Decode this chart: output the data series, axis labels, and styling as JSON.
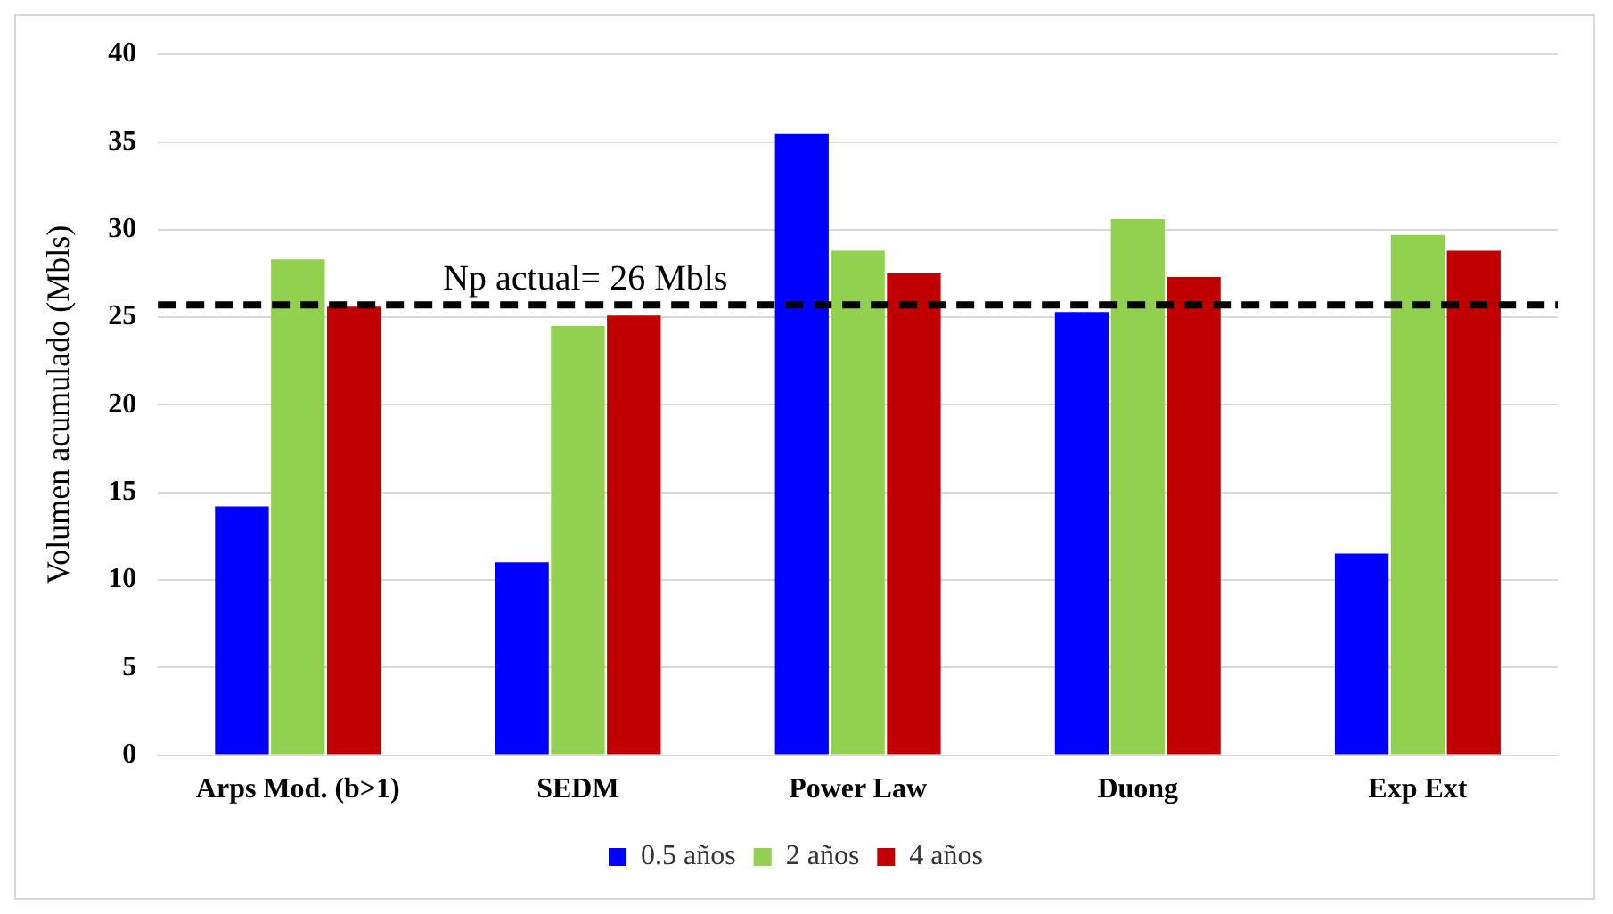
{
  "chart_data": {
    "type": "bar",
    "ylabel": "Volumen acumulado (Mbls)",
    "categories": [
      "Arps Mod. (b>1)",
      "SEDM",
      "Power Law",
      "Duong",
      "Exp Ext"
    ],
    "series": [
      {
        "name": "0.5 años",
        "color": "#0000ff",
        "values": [
          14.2,
          11.0,
          35.5,
          25.3,
          11.5
        ]
      },
      {
        "name": "2 años",
        "color": "#92d050",
        "values": [
          28.3,
          24.5,
          28.8,
          30.6,
          29.7
        ]
      },
      {
        "name": "4 años",
        "color": "#c00000",
        "values": [
          25.6,
          25.1,
          27.5,
          27.3,
          28.8
        ]
      }
    ],
    "ylim": [
      0,
      40
    ],
    "yticks": [
      0,
      5,
      10,
      15,
      20,
      25,
      30,
      35,
      40
    ],
    "grid": "y",
    "legend": "bottom",
    "ref_lines": [
      {
        "axis": "y",
        "value": 25.7,
        "label": "Np actual= 26 Mbls",
        "color": "#000000",
        "line_style": "dashed"
      }
    ]
  }
}
